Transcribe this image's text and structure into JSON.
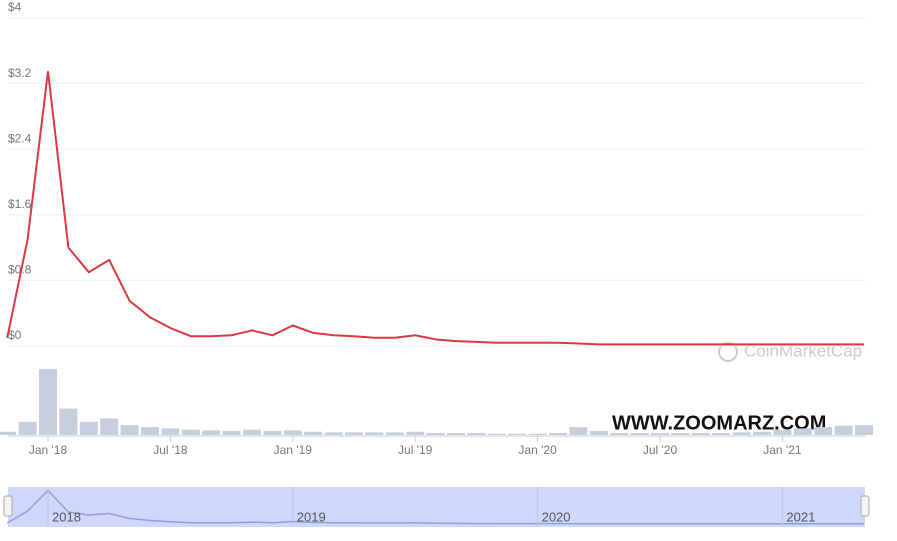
{
  "chart_data": {
    "type": "line",
    "color": "#d9393f",
    "volume_color": "#c7cfdf",
    "grid": true,
    "x": [
      "2017-11",
      "2017-12",
      "2018-01",
      "2018-02",
      "2018-03",
      "2018-04",
      "2018-05",
      "2018-06",
      "2018-07",
      "2018-08",
      "2018-09",
      "2018-10",
      "2018-11",
      "2018-12",
      "2019-01",
      "2019-02",
      "2019-03",
      "2019-04",
      "2019-05",
      "2019-06",
      "2019-07",
      "2019-08",
      "2019-09",
      "2019-10",
      "2019-11",
      "2019-12",
      "2020-01",
      "2020-02",
      "2020-03",
      "2020-04",
      "2020-05",
      "2020-06",
      "2020-07",
      "2020-08",
      "2020-09",
      "2020-10",
      "2020-11",
      "2020-12",
      "2021-01",
      "2021-02",
      "2021-03",
      "2021-04",
      "2021-05"
    ],
    "values": [
      0.1,
      1.3,
      3.35,
      1.2,
      0.9,
      1.05,
      0.55,
      0.35,
      0.22,
      0.12,
      0.12,
      0.13,
      0.19,
      0.13,
      0.25,
      0.16,
      0.13,
      0.12,
      0.1,
      0.1,
      0.13,
      0.08,
      0.06,
      0.05,
      0.04,
      0.04,
      0.04,
      0.04,
      0.03,
      0.02,
      0.02,
      0.02,
      0.02,
      0.02,
      0.02,
      0.02,
      0.02,
      0.02,
      0.02,
      0.02,
      0.02,
      0.02,
      0.02
    ],
    "volume": [
      5,
      20,
      100,
      40,
      20,
      25,
      15,
      12,
      10,
      8,
      7,
      6,
      8,
      6,
      7,
      5,
      4,
      4,
      4,
      4,
      5,
      3,
      3,
      3,
      2,
      2,
      2,
      3,
      12,
      6,
      3,
      3,
      3,
      3,
      3,
      3,
      4,
      5,
      8,
      10,
      12,
      14,
      15
    ],
    "ylim": [
      0,
      4
    ],
    "yticks": [
      {
        "value": 0,
        "label": "$0"
      },
      {
        "value": 0.8,
        "label": "$0.8"
      },
      {
        "value": 1.6,
        "label": "$1.6"
      },
      {
        "value": 2.4,
        "label": "$2.4"
      },
      {
        "value": 3.2,
        "label": "$3.2"
      },
      {
        "value": 4,
        "label": "$4"
      }
    ],
    "xticks": [
      {
        "value": "2018-01",
        "label": "Jan '18"
      },
      {
        "value": "2018-07",
        "label": "Jul '18"
      },
      {
        "value": "2019-01",
        "label": "Jan '19"
      },
      {
        "value": "2019-07",
        "label": "Jul '19"
      },
      {
        "value": "2020-01",
        "label": "Jan '20"
      },
      {
        "value": "2020-07",
        "label": "Jul '20"
      },
      {
        "value": "2021-01",
        "label": "Jan '21"
      }
    ],
    "navigator_ticks": [
      {
        "value": "2018-01",
        "label": "2018"
      },
      {
        "value": "2019-01",
        "label": "2019"
      },
      {
        "value": "2020-01",
        "label": "2020"
      },
      {
        "value": "2021-01",
        "label": "2021"
      }
    ],
    "watermark": "WWW.ZOOMARZ.COM",
    "source": "CoinMarketCap"
  }
}
